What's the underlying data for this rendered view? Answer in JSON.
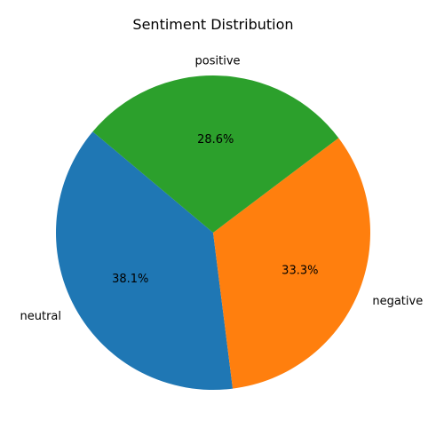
{
  "chart_data": {
    "type": "pie",
    "title": "Sentiment Distribution",
    "labels": [
      "neutral",
      "negative",
      "positive"
    ],
    "values": [
      38.1,
      33.3,
      28.6
    ],
    "percent_labels": [
      "38.1%",
      "33.3%",
      "28.6%"
    ],
    "colors": [
      "#1f77b4",
      "#ff7f0e",
      "#2ca02c"
    ],
    "start_angle_deg": 140,
    "direction": "counterclockwise"
  }
}
